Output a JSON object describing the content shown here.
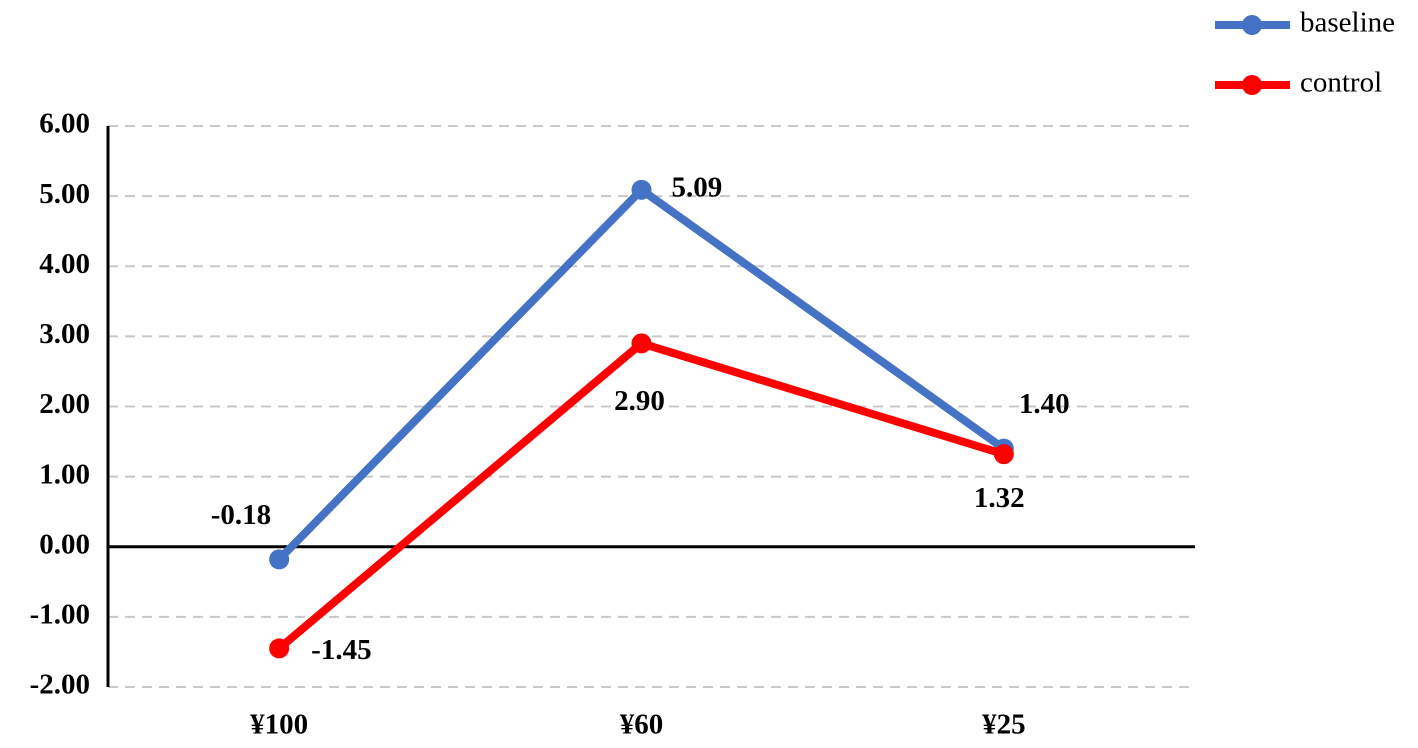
{
  "chart_data": {
    "type": "line",
    "categories": [
      "¥100",
      "¥60",
      "¥25"
    ],
    "series": [
      {
        "name": "baseline",
        "color": "#4472c4",
        "values": [
          -0.18,
          5.09,
          1.4
        ],
        "value_labels": [
          "-0.18",
          "5.09",
          "1.40"
        ]
      },
      {
        "name": "control",
        "color": "#ff0000",
        "values": [
          -1.45,
          2.9,
          1.32
        ],
        "value_labels": [
          "-1.45",
          "2.90",
          "1.32"
        ]
      }
    ],
    "ylim": [
      -2,
      6
    ],
    "yticks": [
      {
        "value": -2,
        "label": "-2.00"
      },
      {
        "value": -1,
        "label": "-1.00"
      },
      {
        "value": 0,
        "label": "0.00"
      },
      {
        "value": 1,
        "label": "1.00"
      },
      {
        "value": 2,
        "label": "2.00"
      },
      {
        "value": 3,
        "label": "3.00"
      },
      {
        "value": 4,
        "label": "4.00"
      },
      {
        "value": 5,
        "label": "5.00"
      },
      {
        "value": 6,
        "label": "6.00"
      }
    ],
    "grid": true,
    "legend": "top-right"
  }
}
